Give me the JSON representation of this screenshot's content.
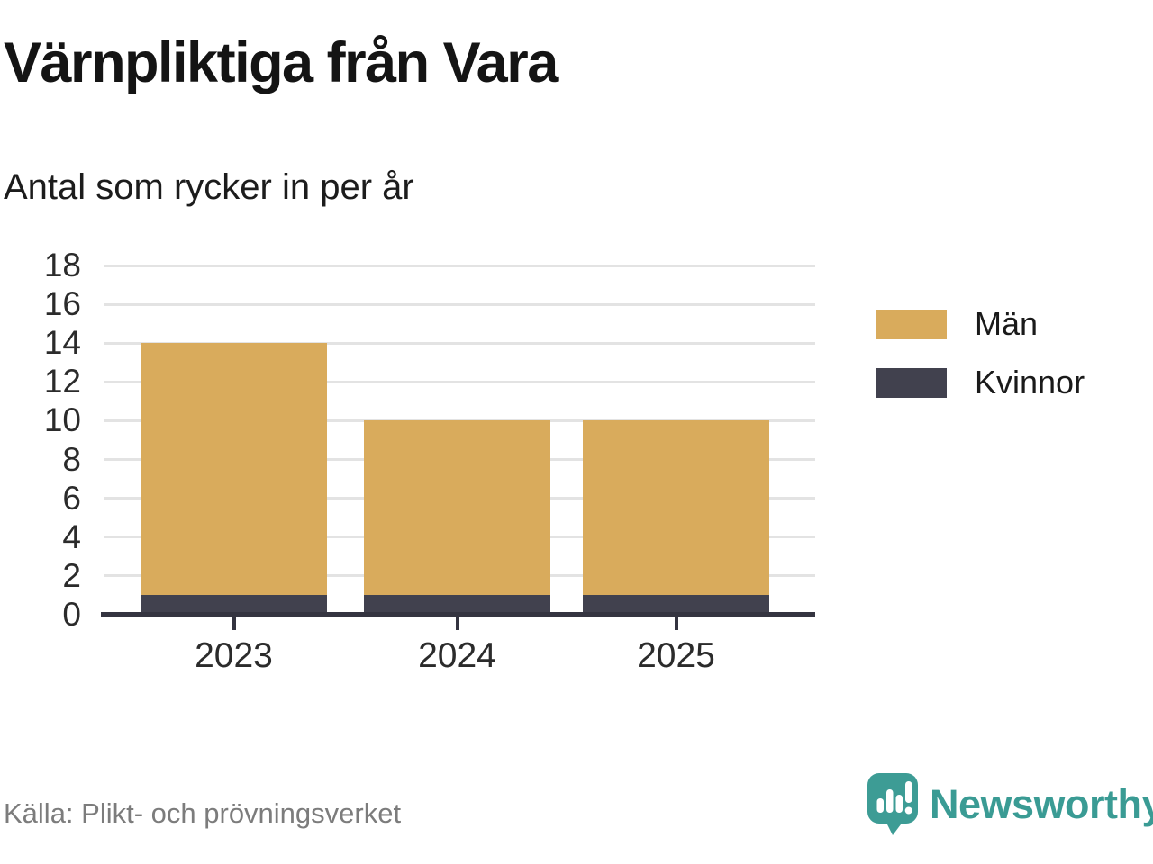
{
  "header": {
    "title": "Värnpliktiga från Vara",
    "subtitle": "Antal som rycker in per år"
  },
  "chart_data": {
    "type": "bar",
    "stacked": true,
    "title": "Värnpliktiga från Vara",
    "subtitle": "Antal som rycker in per år",
    "categories": [
      "2023",
      "2024",
      "2025"
    ],
    "series": [
      {
        "name": "Män",
        "color": "#d9ab5c",
        "values": [
          13,
          9,
          9
        ]
      },
      {
        "name": "Kvinnor",
        "color": "#41414e",
        "values": [
          1,
          1,
          1
        ]
      }
    ],
    "stack_bottom_to_top": [
      "Kvinnor",
      "Män"
    ],
    "stack_totals": [
      14,
      10,
      10
    ],
    "ylim": [
      0,
      18
    ],
    "yticks": [
      0,
      2,
      4,
      6,
      8,
      10,
      12,
      14,
      16,
      18
    ],
    "grid": "horizontal",
    "legend_position": "right",
    "xlabel": "",
    "ylabel": ""
  },
  "footer": {
    "source": "Källa: Plikt- och prövningsverket",
    "brand": "Newsworthy"
  },
  "colors": {
    "men": "#d9ab5c",
    "women": "#41414e",
    "axis": "#343440",
    "grid": "#e3e3e3",
    "brand_teal": "#3a9b94",
    "source_gray": "#7c7c7c"
  }
}
